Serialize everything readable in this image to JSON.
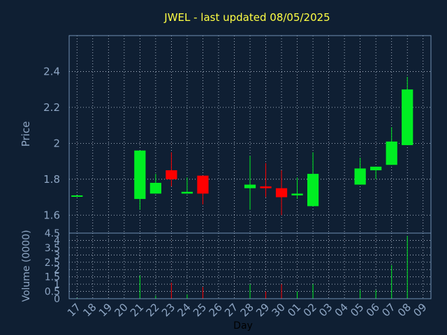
{
  "title": "JWEL - last updated 08/05/2025",
  "colors": {
    "background": "#0f1f33",
    "plot_border": "#6f8fb3",
    "grid": "#c8d4e4",
    "title": "#ffff44",
    "label": "#8ea6c4",
    "up": "#00ee22",
    "down": "#ff0000"
  },
  "chart_data": [
    {
      "type": "candlestick",
      "ylabel": "Price",
      "ylim": [
        1.5,
        2.6
      ],
      "yticks": [
        1.6,
        1.8,
        2,
        2.2,
        2.4
      ],
      "ytick_labels": [
        "1.6",
        "1.8",
        "2",
        "2.2",
        "2.4"
      ],
      "grid": true,
      "categories": [
        "17",
        "18",
        "19",
        "20",
        "21",
        "22",
        "23",
        "24",
        "25",
        "26",
        "27",
        "28",
        "29",
        "30",
        "01",
        "02",
        "03",
        "04",
        "05",
        "06",
        "07",
        "08",
        "09"
      ],
      "candles": [
        {
          "x": "17",
          "open": 1.71,
          "close": 1.71,
          "high": 1.71,
          "low": 1.71
        },
        {
          "x": "21",
          "open": 1.69,
          "close": 1.96,
          "high": 1.96,
          "low": 1.63
        },
        {
          "x": "22",
          "open": 1.72,
          "close": 1.78,
          "high": 1.83,
          "low": 1.72
        },
        {
          "x": "23",
          "open": 1.85,
          "close": 1.8,
          "high": 1.95,
          "low": 1.76
        },
        {
          "x": "24",
          "open": 1.72,
          "close": 1.73,
          "high": 1.81,
          "low": 1.72
        },
        {
          "x": "25",
          "open": 1.82,
          "close": 1.72,
          "high": 1.82,
          "low": 1.66
        },
        {
          "x": "28",
          "open": 1.75,
          "close": 1.77,
          "high": 1.93,
          "low": 1.63
        },
        {
          "x": "29",
          "open": 1.76,
          "close": 1.75,
          "high": 1.89,
          "low": 1.7
        },
        {
          "x": "30",
          "open": 1.75,
          "close": 1.7,
          "high": 1.85,
          "low": 1.6
        },
        {
          "x": "01",
          "open": 1.71,
          "close": 1.72,
          "high": 1.81,
          "low": 1.69
        },
        {
          "x": "02",
          "open": 1.65,
          "close": 1.83,
          "high": 1.95,
          "low": 1.65
        },
        {
          "x": "05",
          "open": 1.77,
          "close": 1.86,
          "high": 1.92,
          "low": 1.77
        },
        {
          "x": "06",
          "open": 1.85,
          "close": 1.87,
          "high": 1.87,
          "low": 1.8
        },
        {
          "x": "07",
          "open": 1.88,
          "close": 2.01,
          "high": 2.09,
          "low": 1.88
        },
        {
          "x": "08",
          "open": 1.99,
          "close": 2.3,
          "high": 2.37,
          "low": 1.99
        }
      ]
    },
    {
      "type": "bar",
      "xlabel": "Day",
      "ylabel": "Volume (0000)",
      "ylim": [
        0,
        4.5
      ],
      "yticks": [
        0,
        0.5,
        1,
        1.5,
        2,
        2.5,
        3,
        3.5,
        4,
        4.5
      ],
      "ytick_labels": [
        "0",
        "0.5",
        "1",
        "1.5",
        "2",
        "2.5",
        "3",
        "3.5",
        "4",
        "4.5"
      ],
      "grid": true,
      "categories": [
        "17",
        "18",
        "19",
        "20",
        "21",
        "22",
        "23",
        "24",
        "25",
        "26",
        "27",
        "28",
        "29",
        "30",
        "01",
        "02",
        "03",
        "04",
        "05",
        "06",
        "07",
        "08",
        "09"
      ],
      "values": [
        0.05,
        0,
        0,
        0,
        1.6,
        0.2,
        1.1,
        0.3,
        0.8,
        0,
        0,
        1.0,
        0.5,
        1.0,
        0.5,
        1.0,
        0,
        0,
        0.6,
        0.6,
        2.3,
        4.3,
        0
      ],
      "directions": [
        "up",
        "",
        "",
        "",
        "up",
        "up",
        "down",
        "up",
        "down",
        "",
        "",
        "up",
        "down",
        "down",
        "up",
        "up",
        "",
        "",
        "up",
        "up",
        "up",
        "up",
        ""
      ]
    }
  ]
}
